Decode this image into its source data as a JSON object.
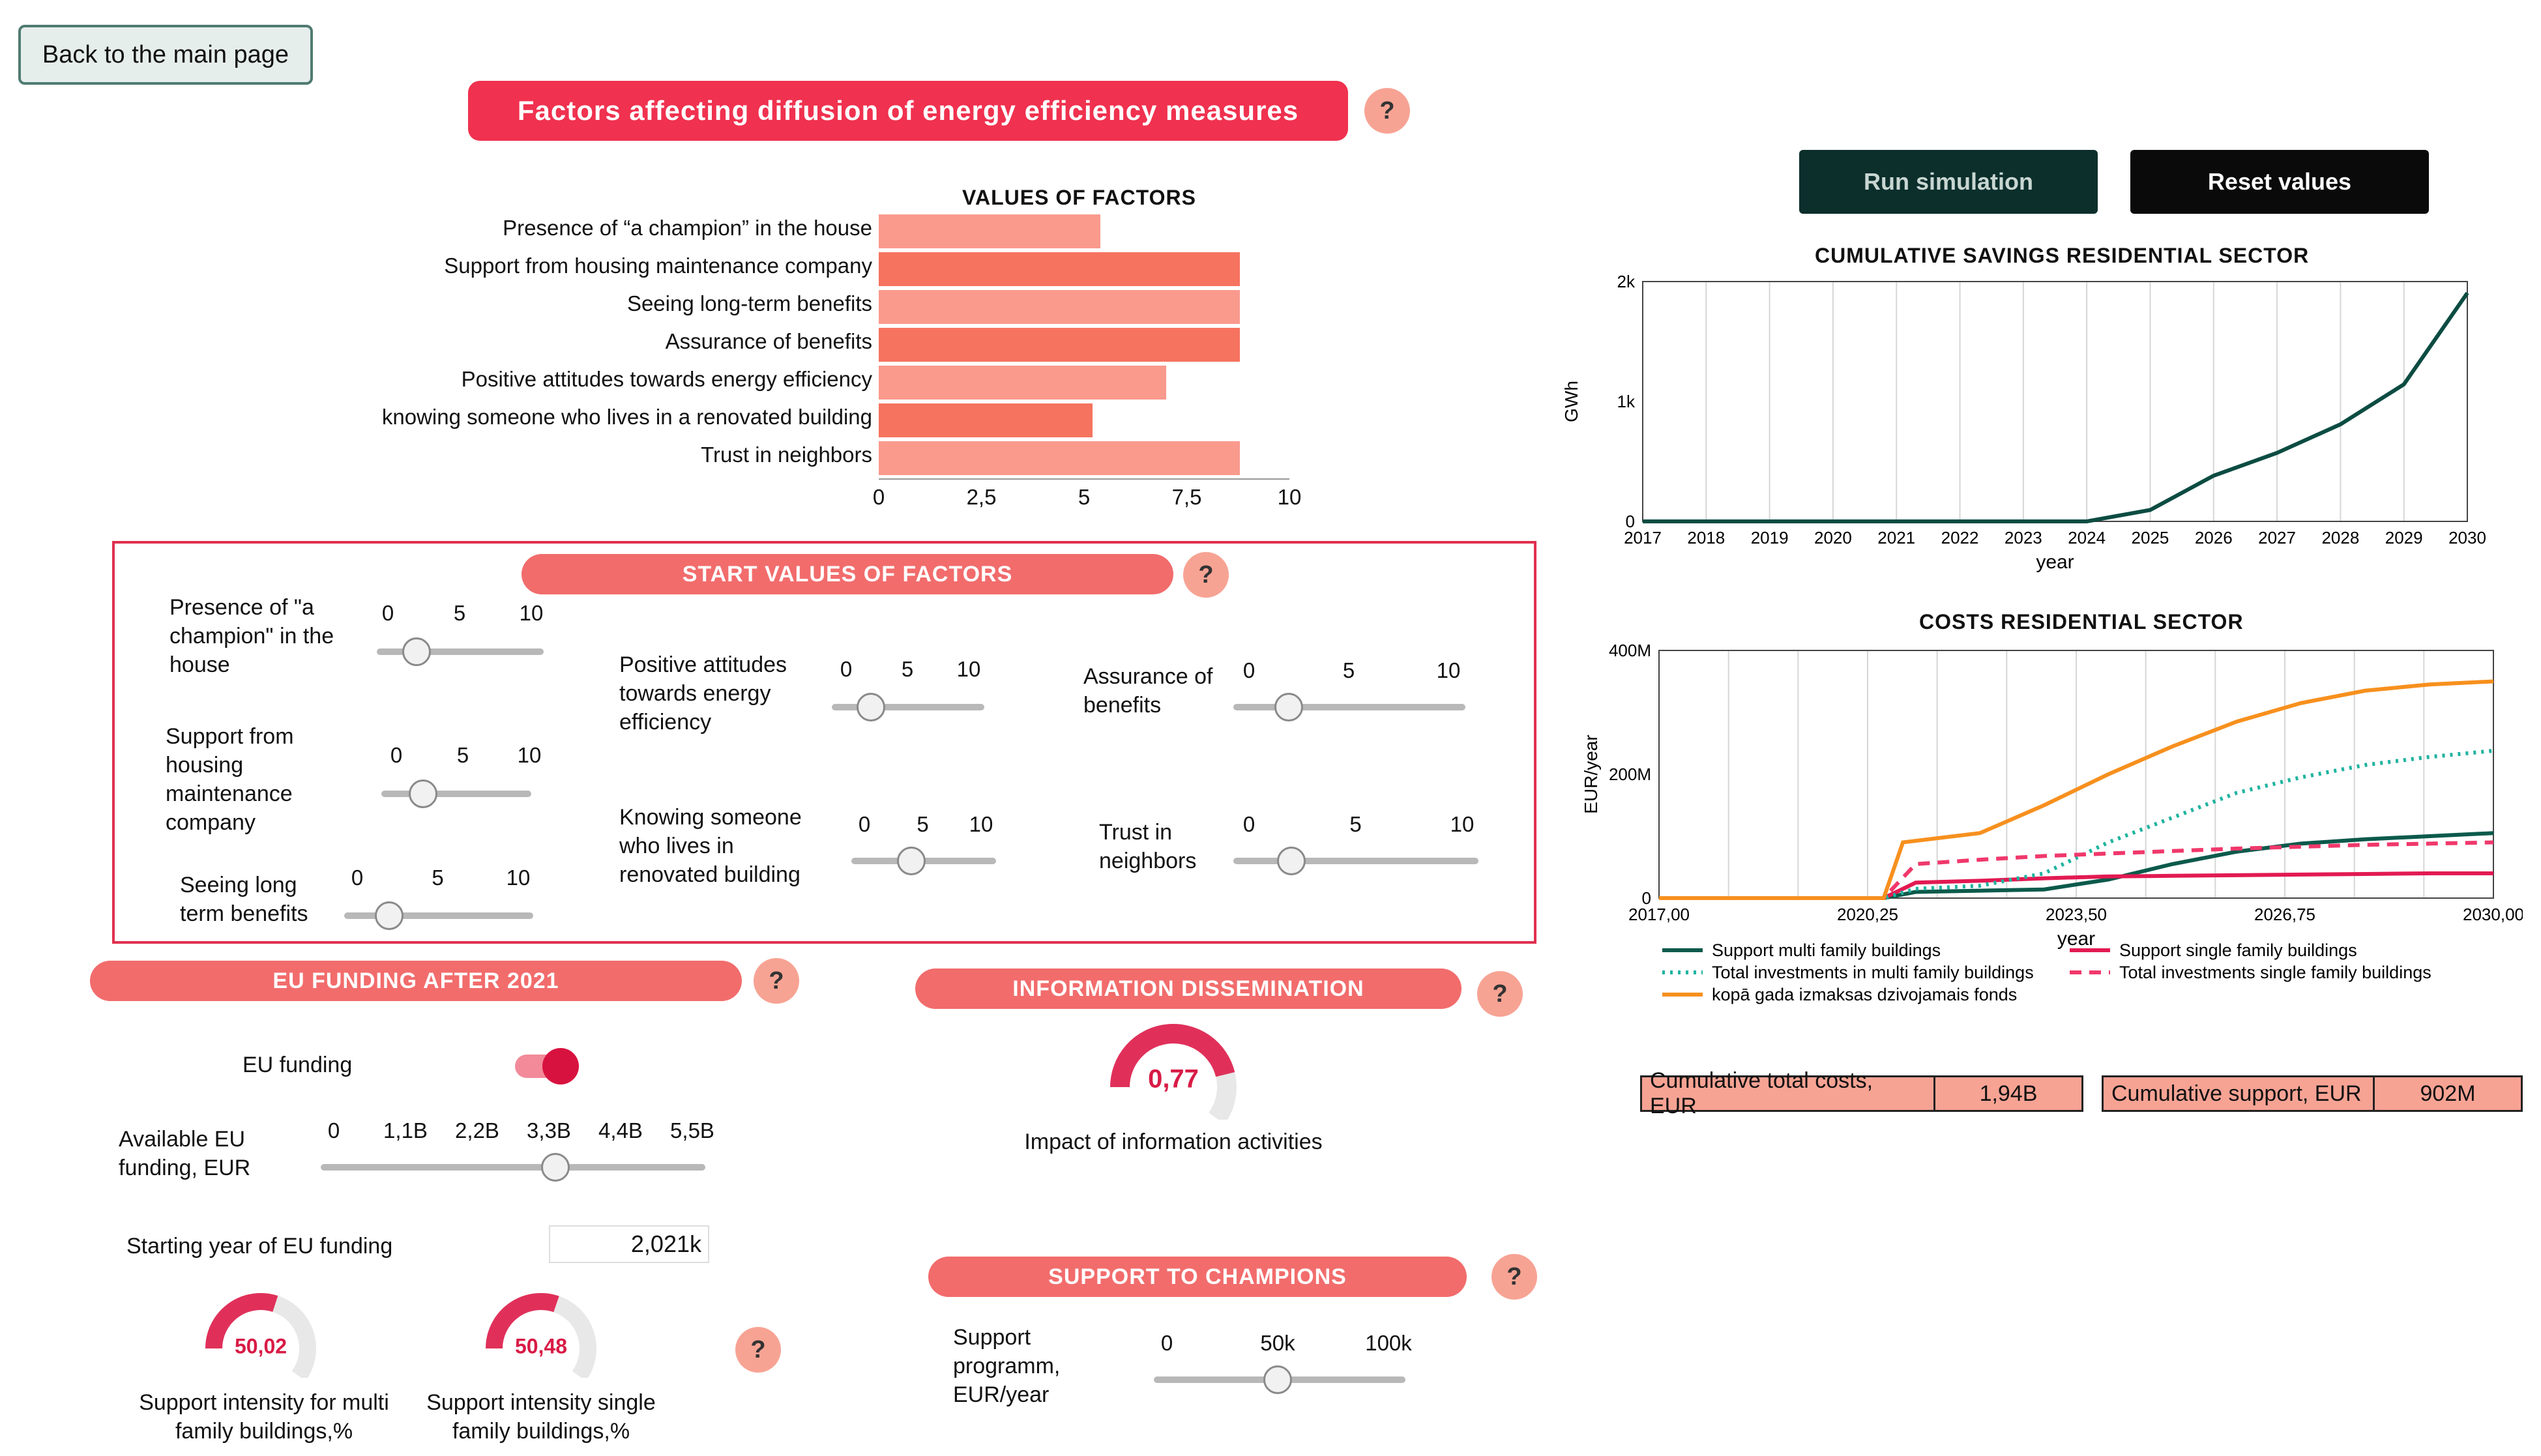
{
  "back_button": "Back to the main page",
  "main_title": "Factors affecting diffusion of energy efficiency measures",
  "help_symbol": "?",
  "actions": {
    "run": "Run simulation",
    "reset": "Reset values"
  },
  "colors": {
    "accent": "#f4576a",
    "dark_teal": "#0c2f2c",
    "black": "#0a0a0a",
    "bar_light": "#f99a8d",
    "bar_dark": "#f6735f",
    "gauge": "#d81b46"
  },
  "factors_chart": {
    "title": "VALUES OF FACTORS",
    "type": "bar",
    "categories": [
      "Presence of “a champion” in the house",
      "Support from housing maintenance company",
      "Seeing long-term benefits",
      "Assurance of benefits",
      "Positive attitudes towards energy efficiency",
      "knowing someone who lives in a renovated building",
      "Trust in neighbors"
    ],
    "values": [
      5.4,
      8.8,
      8.8,
      8.8,
      7.0,
      5.2,
      8.8
    ],
    "xlim": [
      0,
      10
    ],
    "ticks": [
      "0",
      "2,5",
      "5",
      "7,5",
      "10"
    ]
  },
  "start_values": {
    "title": "START VALUES OF FACTORS",
    "sliders": [
      {
        "label": "Presence of \"a champion\" in the house",
        "ticks": [
          "0",
          "5",
          "10"
        ],
        "value": 2
      },
      {
        "label": "Support from housing maintenance company",
        "ticks": [
          "0",
          "5",
          "10"
        ],
        "value": 2
      },
      {
        "label": "Seeing long term benefits",
        "ticks": [
          "0",
          "5",
          "10"
        ],
        "value": 2
      },
      {
        "label": "Positive attitudes towards energy efficiency",
        "ticks": [
          "0",
          "5",
          "10"
        ],
        "value": 2
      },
      {
        "label": "Knowing someone who lives in renovated building",
        "ticks": [
          "0",
          "5",
          "10"
        ],
        "value": 4
      },
      {
        "label": "Assurance of benefits",
        "ticks": [
          "0",
          "5",
          "10"
        ],
        "value": 2
      },
      {
        "label": "Trust in neighbors",
        "ticks": [
          "0",
          "5",
          "10"
        ],
        "value": 2
      }
    ]
  },
  "eu_funding": {
    "title": "EU FUNDING AFTER 2021",
    "toggle_label": "EU funding",
    "toggle_on": true,
    "available_label": "Available EU funding, EUR",
    "available_ticks": [
      "0",
      "1,1B",
      "2,2B",
      "3,3B",
      "4,4B",
      "5,5B"
    ],
    "available_value": 3.4,
    "start_year_label": "Starting year of EU funding",
    "start_year_value": "2,021k",
    "gauge_multi": {
      "value": "50,02",
      "fraction": 0.5002,
      "label": "Support intensity for multi family buildings,%"
    },
    "gauge_single": {
      "value": "50,48",
      "fraction": 0.5048,
      "label": "Support intensity single family buildings,%"
    }
  },
  "info": {
    "title": "INFORMATION DISSEMINATION",
    "gauge": {
      "value": "0,77",
      "fraction": 0.77,
      "label": "Impact of information activities"
    }
  },
  "champions": {
    "title": "SUPPORT TO CHAMPIONS",
    "slider_label": "Support programm, EUR/year",
    "ticks": [
      "0",
      "50k",
      "100k"
    ],
    "value": 50
  },
  "savings_chart": {
    "title": "CUMULATIVE SAVINGS RESIDENTIAL SECTOR",
    "type": "line",
    "ylabel": "GWh",
    "xlabel": "year",
    "x": [
      2017,
      2018,
      2019,
      2020,
      2021,
      2022,
      2023,
      2024,
      2025,
      2026,
      2027,
      2028,
      2029,
      2030
    ],
    "y": [
      0,
      0,
      0,
      0,
      0,
      0,
      0,
      0,
      100,
      400,
      600,
      850,
      1200,
      2000
    ],
    "ylim": [
      0,
      2100
    ],
    "yticks": [
      "0",
      "1k",
      "2k"
    ],
    "xticks": [
      "2017",
      "2018",
      "2019",
      "2020",
      "2021",
      "2022",
      "2023",
      "2024",
      "2025",
      "2026",
      "2027",
      "2028",
      "2029",
      "2030"
    ]
  },
  "costs_chart": {
    "title": "COSTS RESIDENTIAL SECTOR",
    "type": "line",
    "ylabel": "EUR/year",
    "xlabel": "year",
    "xlim": [
      2017,
      2030
    ],
    "ylim": [
      0,
      400
    ],
    "yticks": [
      "0",
      "200M",
      "400M"
    ],
    "xticks": [
      "2017,00",
      "2020,25",
      "2023,50",
      "2026,75",
      "2030,00"
    ],
    "series": [
      {
        "name": "Support multi family buildings",
        "color": "#0c5a4c",
        "style": "solid",
        "x": [
          2017,
          2020.5,
          2021,
          2022,
          2023,
          2024,
          2025,
          2026,
          2027,
          2028,
          2029,
          2030
        ],
        "y": [
          0,
          0,
          10,
          12,
          14,
          30,
          55,
          75,
          88,
          95,
          100,
          105
        ]
      },
      {
        "name": "Support single family buildings",
        "color": "#e21a52",
        "style": "solid",
        "x": [
          2017,
          2020.5,
          2021,
          2022,
          2023,
          2024,
          2025,
          2026,
          2027,
          2028,
          2029,
          2030
        ],
        "y": [
          0,
          0,
          25,
          28,
          32,
          35,
          36,
          37,
          38,
          39,
          40,
          40
        ]
      },
      {
        "name": "Total investments in multi family buildings",
        "color": "#1fb3a0",
        "style": "dotted",
        "x": [
          2017,
          2020.5,
          2021,
          2022,
          2023,
          2024,
          2025,
          2026,
          2027,
          2028,
          2029,
          2030
        ],
        "y": [
          0,
          0,
          15,
          20,
          40,
          90,
          130,
          170,
          195,
          215,
          228,
          238
        ]
      },
      {
        "name": "Total investments single family buildings",
        "color": "#f0386b",
        "style": "dashed",
        "x": [
          2017,
          2020.5,
          2021,
          2022,
          2023,
          2024,
          2025,
          2026,
          2027,
          2028,
          2029,
          2030
        ],
        "y": [
          0,
          0,
          55,
          62,
          68,
          72,
          76,
          80,
          83,
          86,
          88,
          90
        ]
      },
      {
        "name": "kopā gada izmaksas dzivojamais fonds",
        "color": "#f7901e",
        "style": "solid",
        "x": [
          2017,
          2020.5,
          2020.8,
          2022,
          2023,
          2024,
          2025,
          2026,
          2027,
          2028,
          2029,
          2030
        ],
        "y": [
          0,
          0,
          90,
          105,
          150,
          200,
          245,
          285,
          315,
          335,
          345,
          350
        ]
      }
    ]
  },
  "metrics": [
    {
      "label": "Cumulative total costs, EUR",
      "value": "1,94B"
    },
    {
      "label": "Cumulative support, EUR",
      "value": "902M"
    }
  ]
}
